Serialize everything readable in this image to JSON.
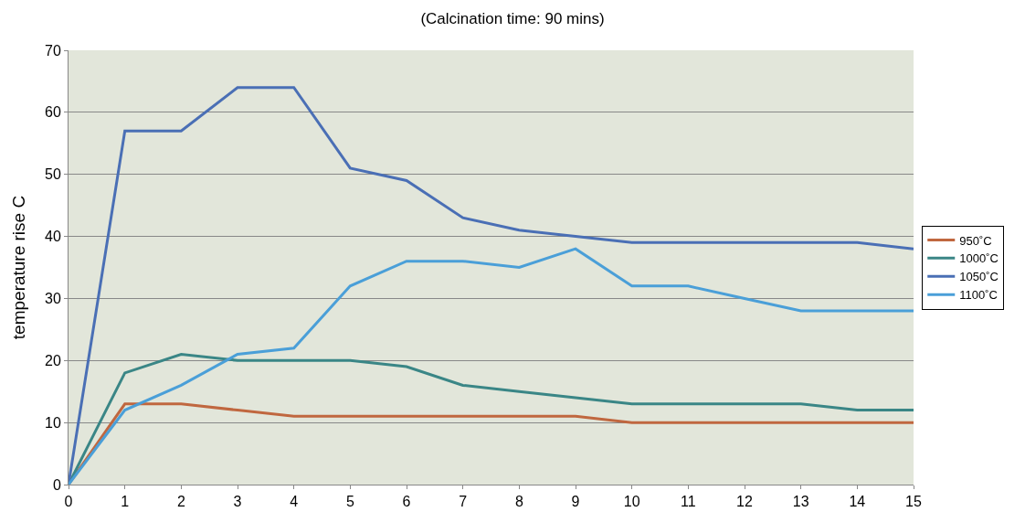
{
  "chart_data": {
    "type": "line",
    "title": "(Calcination time: 90 mins)",
    "ylabel": "temperature rise C",
    "x": [
      0,
      1,
      2,
      3,
      4,
      5,
      6,
      7,
      8,
      9,
      10,
      11,
      12,
      13,
      14,
      15
    ],
    "series": [
      {
        "name": "950˚C",
        "color": "#c0673f",
        "values": [
          0,
          13,
          13,
          12,
          11,
          11,
          11,
          11,
          11,
          11,
          10,
          10,
          10,
          10,
          10,
          10
        ]
      },
      {
        "name": "1000˚C",
        "color": "#3a8686",
        "values": [
          0,
          18,
          21,
          20,
          20,
          20,
          19,
          16,
          15,
          14,
          13,
          13,
          13,
          13,
          12,
          12
        ]
      },
      {
        "name": "1050˚C",
        "color": "#4a6fb5",
        "values": [
          0,
          57,
          57,
          64,
          64,
          51,
          49,
          43,
          41,
          40,
          39,
          39,
          39,
          39,
          39,
          38
        ]
      },
      {
        "name": "1100˚C",
        "color": "#4a9fd8",
        "values": [
          0,
          12,
          16,
          21,
          22,
          32,
          36,
          36,
          35,
          38,
          32,
          32,
          30,
          28,
          28,
          28
        ]
      }
    ],
    "xlim": [
      0,
      15
    ],
    "xticks": [
      0,
      1,
      2,
      3,
      4,
      5,
      6,
      7,
      8,
      9,
      10,
      11,
      12,
      13,
      14,
      15
    ],
    "ylim": [
      0,
      70
    ],
    "yticks": [
      0,
      10,
      20,
      30,
      40,
      50,
      60,
      70
    ],
    "grid": "y",
    "legend": "right",
    "marker": "none",
    "line_style": "solid"
  }
}
